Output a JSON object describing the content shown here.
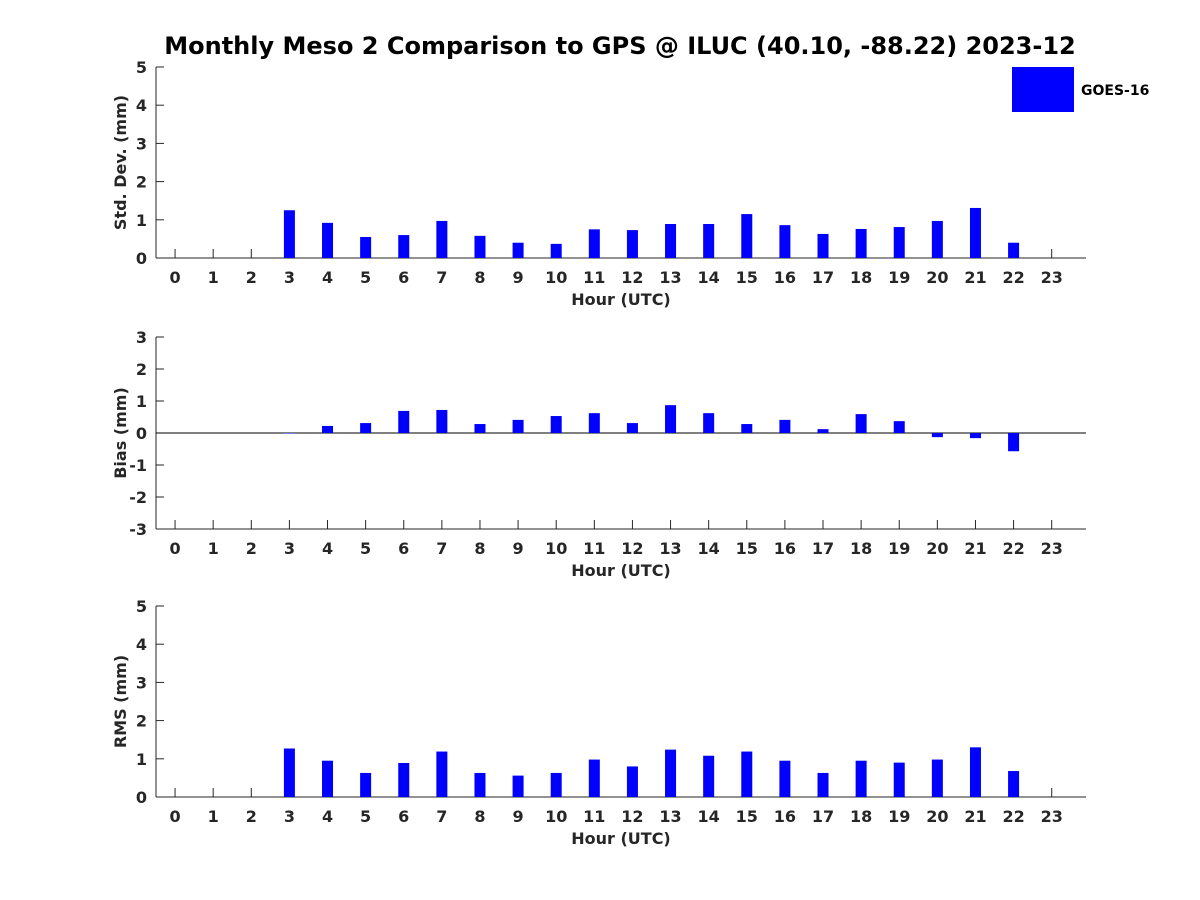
{
  "title": "Monthly Meso 2 Comparison to GPS @ ILUC (40.10, -88.22) 2023-12",
  "legend": {
    "label": "GOES-16",
    "color": "#0000ff",
    "placement": "top-right"
  },
  "chart_data": [
    {
      "type": "bar",
      "xlabel": "Hour (UTC)",
      "ylabel": "Std. Dev. (mm)",
      "ylim": [
        0,
        5
      ],
      "yticks": [
        "0",
        "1",
        "2",
        "3",
        "4",
        "5"
      ],
      "categories": [
        "0",
        "1",
        "2",
        "3",
        "4",
        "5",
        "6",
        "7",
        "8",
        "9",
        "10",
        "11",
        "12",
        "13",
        "14",
        "15",
        "16",
        "17",
        "18",
        "19",
        "20",
        "21",
        "22",
        "23"
      ],
      "series": [
        {
          "name": "GOES-16",
          "color": "#0000ff",
          "values": [
            null,
            null,
            null,
            1.25,
            0.92,
            0.55,
            0.6,
            0.97,
            0.58,
            0.4,
            0.37,
            0.75,
            0.73,
            0.89,
            0.89,
            1.15,
            0.86,
            0.63,
            0.76,
            0.81,
            0.97,
            1.31,
            0.4,
            null
          ]
        }
      ]
    },
    {
      "type": "bar",
      "xlabel": "Hour (UTC)",
      "ylabel": "Bias (mm)",
      "ylim": [
        -3,
        3
      ],
      "yticks": [
        "-3",
        "-2",
        "-1",
        "0",
        "1",
        "2",
        "3"
      ],
      "categories": [
        "0",
        "1",
        "2",
        "3",
        "4",
        "5",
        "6",
        "7",
        "8",
        "9",
        "10",
        "11",
        "12",
        "13",
        "14",
        "15",
        "16",
        "17",
        "18",
        "19",
        "20",
        "21",
        "22",
        "23"
      ],
      "series": [
        {
          "name": "GOES-16",
          "color": "#0000ff",
          "values": [
            null,
            null,
            null,
            0.0,
            0.22,
            0.31,
            0.69,
            0.72,
            0.28,
            0.41,
            0.53,
            0.62,
            0.31,
            0.87,
            0.62,
            0.28,
            0.41,
            0.12,
            0.59,
            0.37,
            -0.13,
            -0.16,
            -0.57,
            null
          ]
        }
      ]
    },
    {
      "type": "bar",
      "xlabel": "Hour (UTC)",
      "ylabel": "RMS (mm)",
      "ylim": [
        0,
        5
      ],
      "yticks": [
        "0",
        "1",
        "2",
        "3",
        "4",
        "5"
      ],
      "categories": [
        "0",
        "1",
        "2",
        "3",
        "4",
        "5",
        "6",
        "7",
        "8",
        "9",
        "10",
        "11",
        "12",
        "13",
        "14",
        "15",
        "16",
        "17",
        "18",
        "19",
        "20",
        "21",
        "22",
        "23"
      ],
      "series": [
        {
          "name": "GOES-16",
          "color": "#0000ff",
          "values": [
            null,
            null,
            null,
            1.27,
            0.95,
            0.63,
            0.89,
            1.19,
            0.63,
            0.56,
            0.63,
            0.98,
            0.8,
            1.24,
            1.08,
            1.19,
            0.95,
            0.63,
            0.95,
            0.9,
            0.98,
            1.3,
            0.68,
            null
          ]
        }
      ]
    }
  ]
}
